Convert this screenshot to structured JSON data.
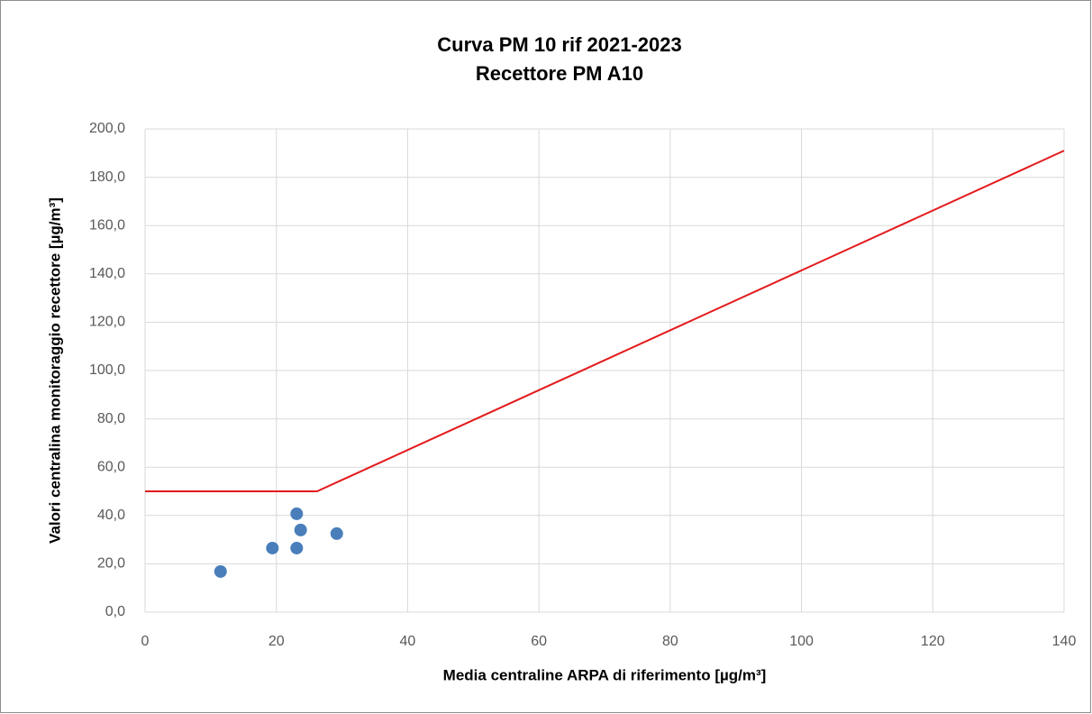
{
  "chart_data": {
    "type": "scatter",
    "title": "Curva PM 10 rif 2021-2023",
    "subtitle": "Recettore PM A10",
    "x_label": "Media centraline ARPA di riferimento [µg/m³]",
    "y_label": "Valori centralina monitoraggio recettore [µg/m³]",
    "series": [
      {
        "type": "scatter",
        "color": "#4a7ebb",
        "x": [
          11.5,
          19.4,
          23.1,
          23.1,
          23.7,
          29.2
        ],
        "values": [
          16.8,
          26.5,
          26.5,
          40.7,
          34.0,
          32.5
        ]
      },
      {
        "type": "line",
        "color": "#e31a1c",
        "x": [
          0,
          26.2,
          140
        ],
        "values": [
          50,
          50,
          191
        ]
      }
    ],
    "xlim": [
      0,
      140
    ],
    "xticks": [
      0,
      20,
      40,
      60,
      80,
      100,
      120,
      140
    ],
    "ylim": [
      0,
      200
    ],
    "yticks": [
      {
        "value": 0,
        "label": "0,0"
      },
      {
        "value": 20,
        "label": "20,0"
      },
      {
        "value": 40,
        "label": "40,0"
      },
      {
        "value": 60,
        "label": "60,0"
      },
      {
        "value": 80,
        "label": "80,0"
      },
      {
        "value": 100,
        "label": "100,0"
      },
      {
        "value": 120,
        "label": "120,0"
      },
      {
        "value": 140,
        "label": "140,0"
      },
      {
        "value": 160,
        "label": "160,0"
      },
      {
        "value": 180,
        "label": "180,0"
      },
      {
        "value": 200,
        "label": "200,0"
      }
    ],
    "grid": true
  }
}
